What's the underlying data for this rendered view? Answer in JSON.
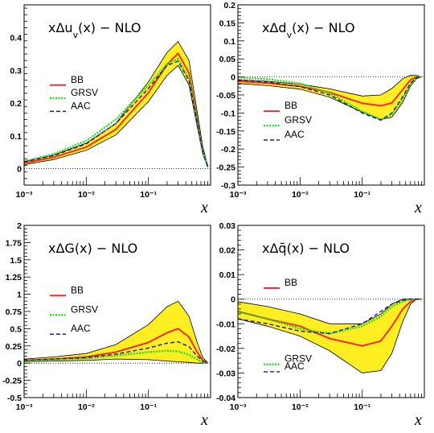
{
  "figure": {
    "xlabel": "x",
    "legend_labels": [
      "BB",
      "GRSV",
      "AAC"
    ],
    "colors": {
      "band": "#ffee22",
      "BB": "#ff1a1a",
      "GRSV": "#22dd22",
      "AAC": "#1a1a99"
    }
  },
  "chart_data": [
    {
      "id": "du",
      "type": "line",
      "title": "xΔu_v(x) − NLO",
      "xscale": "log",
      "xlim": [
        0.001,
        1.0
      ],
      "ylim": [
        -0.05,
        0.5
      ],
      "yticks": [
        0,
        0.1,
        0.2,
        0.3,
        0.4
      ],
      "ytick_labels": [
        "0",
        "0.1",
        "0.2",
        "0.3",
        "0.4"
      ],
      "xticks": [
        0.001,
        0.01,
        0.1
      ],
      "xtick_labels": [
        "10⁻³",
        "10⁻²",
        "10⁻¹"
      ],
      "x": [
        0.001,
        0.003,
        0.01,
        0.03,
        0.1,
        0.2,
        0.3,
        0.45,
        0.6,
        0.75,
        0.9
      ],
      "band": {
        "lower": [
          0.012,
          0.028,
          0.056,
          0.103,
          0.205,
          0.285,
          0.315,
          0.255,
          0.135,
          0.045,
          0.005
        ],
        "upper": [
          0.022,
          0.042,
          0.078,
          0.138,
          0.265,
          0.355,
          0.388,
          0.33,
          0.182,
          0.068,
          0.008
        ]
      },
      "series": [
        {
          "name": "BB",
          "values": [
            0.017,
            0.035,
            0.066,
            0.12,
            0.232,
            0.318,
            0.352,
            0.292,
            0.158,
            0.055,
            0.006
          ]
        },
        {
          "name": "GRSV",
          "values": [
            0.022,
            0.045,
            0.085,
            0.15,
            0.255,
            0.32,
            0.335,
            0.275,
            0.15,
            0.052,
            0.006
          ]
        },
        {
          "name": "AAC",
          "values": [
            0.021,
            0.04,
            0.076,
            0.138,
            0.245,
            0.315,
            0.328,
            0.268,
            0.148,
            0.05,
            0.006
          ]
        }
      ],
      "legend_rows": [
        0.255,
        0.215,
        0.175
      ]
    },
    {
      "id": "dd",
      "type": "line",
      "title": "xΔd_v(x) − NLO",
      "xscale": "log",
      "xlim": [
        0.001,
        1.0
      ],
      "ylim": [
        -0.3,
        0.2
      ],
      "yticks": [
        -0.3,
        -0.25,
        -0.2,
        -0.15,
        -0.1,
        -0.05,
        0,
        0.05,
        0.1,
        0.15,
        0.2
      ],
      "ytick_labels": [
        "-0.3",
        "-0.25",
        "-0.2",
        "-0.15",
        "-0.1",
        "-0.05",
        "0",
        "0.05",
        "0.1",
        "0.15",
        "0.2"
      ],
      "xticks": [
        0.001,
        0.01,
        0.1
      ],
      "xtick_labels": [
        "10⁻³",
        "10⁻²",
        "10⁻¹"
      ],
      "x": [
        0.001,
        0.003,
        0.01,
        0.03,
        0.1,
        0.2,
        0.3,
        0.45,
        0.6,
        0.75,
        0.9
      ],
      "band": {
        "lower": [
          -0.018,
          -0.024,
          -0.034,
          -0.056,
          -0.098,
          -0.118,
          -0.112,
          -0.07,
          -0.025,
          -0.005,
          0.0
        ],
        "upper": [
          -0.008,
          -0.012,
          -0.02,
          -0.033,
          -0.053,
          -0.05,
          -0.032,
          -0.005,
          0.005,
          0.004,
          0.0
        ]
      },
      "series": [
        {
          "name": "BB",
          "values": [
            -0.012,
            -0.017,
            -0.026,
            -0.043,
            -0.073,
            -0.08,
            -0.072,
            -0.035,
            -0.008,
            0.0,
            0.0
          ]
        },
        {
          "name": "GRSV",
          "values": [
            -0.002,
            -0.006,
            -0.018,
            -0.045,
            -0.095,
            -0.118,
            -0.105,
            -0.06,
            -0.018,
            -0.003,
            0.0
          ]
        },
        {
          "name": "AAC",
          "values": [
            -0.008,
            -0.014,
            -0.027,
            -0.05,
            -0.1,
            -0.12,
            -0.1,
            -0.055,
            -0.017,
            -0.003,
            0.0
          ]
        }
      ],
      "legend_rows": [
        -0.095,
        -0.135,
        -0.175
      ]
    },
    {
      "id": "dg",
      "type": "line",
      "title": "xΔG(x) − NLO",
      "xscale": "log",
      "xlim": [
        0.001,
        1.0
      ],
      "ylim": [
        -0.5,
        2.0
      ],
      "yticks": [
        -0.5,
        -0.25,
        0,
        0.25,
        0.5,
        0.75,
        1,
        1.25,
        1.5,
        1.75,
        2
      ],
      "ytick_labels": [
        "-0.5",
        "-0.25",
        "0",
        "0.25",
        "0.5",
        "0.75",
        "1",
        "1.25",
        "1.5",
        "1.75",
        "2"
      ],
      "xticks": [
        0.001,
        0.01,
        0.1
      ],
      "xtick_labels": [
        "10⁻³",
        "10⁻²",
        "10⁻¹"
      ],
      "x": [
        0.001,
        0.003,
        0.01,
        0.03,
        0.1,
        0.2,
        0.3,
        0.45,
        0.6,
        0.75,
        0.9
      ],
      "band": {
        "lower": [
          0.02,
          0.03,
          0.04,
          0.06,
          0.05,
          0.03,
          0.02,
          0.01,
          0.0,
          0.0,
          0.0
        ],
        "upper": [
          0.06,
          0.09,
          0.14,
          0.27,
          0.56,
          0.82,
          0.9,
          0.68,
          0.32,
          0.08,
          0.01
        ]
      },
      "series": [
        {
          "name": "BB",
          "values": [
            0.04,
            0.06,
            0.09,
            0.16,
            0.3,
            0.44,
            0.5,
            0.38,
            0.17,
            0.04,
            0.005
          ]
        },
        {
          "name": "GRSV",
          "values": [
            0.03,
            0.05,
            0.07,
            0.11,
            0.16,
            0.18,
            0.17,
            0.12,
            0.06,
            0.015,
            0.002
          ]
        },
        {
          "name": "AAC",
          "values": [
            0.04,
            0.06,
            0.08,
            0.13,
            0.22,
            0.29,
            0.31,
            0.24,
            0.11,
            0.03,
            0.004
          ]
        }
      ],
      "legend_rows": [
        0.98,
        0.7,
        0.42
      ]
    },
    {
      "id": "dq",
      "type": "line",
      "title": "xΔq̄(x) − NLO",
      "xscale": "log",
      "xlim": [
        0.001,
        1.0
      ],
      "ylim": [
        -0.04,
        0.03
      ],
      "yticks": [
        -0.04,
        -0.03,
        -0.02,
        -0.01,
        0,
        0.01,
        0.02,
        0.03
      ],
      "ytick_labels": [
        "-0.04",
        "-0.03",
        "-0.02",
        "-0.01",
        "0",
        "0.01",
        "0.02",
        "0.03"
      ],
      "xticks": [
        0.001,
        0.01,
        0.1
      ],
      "xtick_labels": [
        "10⁻³",
        "10⁻²",
        "10⁻¹"
      ],
      "x": [
        0.001,
        0.003,
        0.01,
        0.03,
        0.1,
        0.2,
        0.3,
        0.45,
        0.6,
        0.75,
        0.9
      ],
      "band": {
        "lower": [
          -0.008,
          -0.011,
          -0.015,
          -0.021,
          -0.03,
          -0.029,
          -0.022,
          -0.009,
          -0.002,
          0.0,
          0.0
        ],
        "upper": [
          -0.001,
          -0.003,
          -0.006,
          -0.01,
          -0.01,
          -0.006,
          -0.002,
          0.0,
          0.0,
          0.0,
          0.0
        ]
      },
      "series": [
        {
          "name": "BB",
          "values": [
            -0.005,
            -0.008,
            -0.011,
            -0.016,
            -0.019,
            -0.017,
            -0.011,
            -0.004,
            -0.001,
            0.0,
            0.0
          ]
        },
        {
          "name": "GRSV",
          "values": [
            -0.005,
            -0.008,
            -0.012,
            -0.014,
            -0.011,
            -0.007,
            -0.003,
            -0.001,
            0.0,
            0.0,
            0.0
          ]
        },
        {
          "name": "AAC",
          "values": [
            -0.008,
            -0.01,
            -0.013,
            -0.014,
            -0.01,
            -0.005,
            -0.002,
            -0.0005,
            0.0,
            0.0,
            0.0
          ]
        }
      ],
      "legend_rows": [
        -0.0235,
        -0.0265,
        -0.0295
      ],
      "legend_bb_row": 0.0045
    }
  ]
}
